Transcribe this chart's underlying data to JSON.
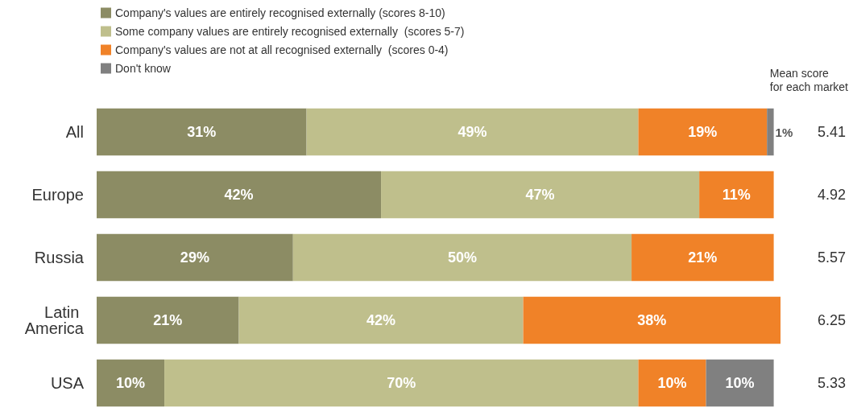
{
  "chart_data": {
    "type": "bar",
    "orientation": "horizontal",
    "stacked": true,
    "categories": [
      "All",
      "Europe",
      "Russia",
      "Latin America",
      "USA"
    ],
    "series": [
      {
        "name": "Company's values are entirely recognised externally (scores 8-10)",
        "color": "#8c8c64",
        "values": [
          31,
          42,
          29,
          21,
          10
        ],
        "value_labels": [
          "31%",
          "42%",
          "29%",
          "21%",
          "10%"
        ]
      },
      {
        "name": "Some company values are entirely recognised externally  (scores 5-7)",
        "color": "#bfbf8c",
        "values": [
          49,
          47,
          50,
          42,
          70
        ],
        "value_labels": [
          "49%",
          "47%",
          "50%",
          "42%",
          "70%"
        ]
      },
      {
        "name": "Company's values are not at all recognised externally  (scores 0-4)",
        "color": "#f08228",
        "values": [
          19,
          11,
          21,
          38,
          10
        ],
        "value_labels": [
          "19%",
          "11%",
          "21%",
          "38%",
          "10%"
        ]
      },
      {
        "name": "Don't know",
        "color": "#808080",
        "values": [
          1,
          null,
          null,
          null,
          10
        ],
        "value_labels": [
          "1%",
          null,
          null,
          null,
          "10%"
        ]
      }
    ],
    "legend": "top left",
    "annotations": [
      "Mean score\nfor each market",
      "5.41",
      "4.92",
      "5.57",
      "6.25",
      "5.33"
    ]
  }
}
